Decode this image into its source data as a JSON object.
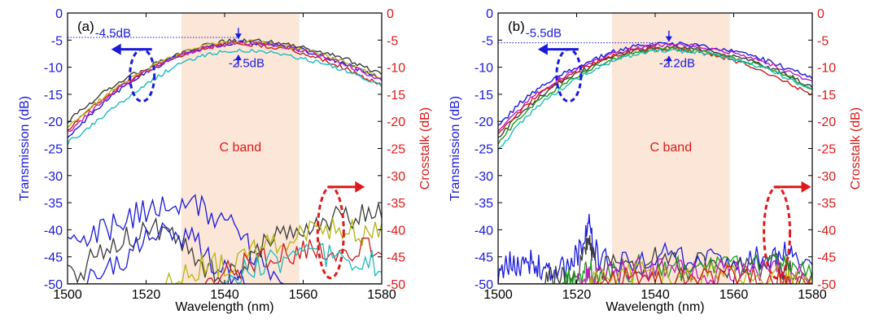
{
  "figure": {
    "colors": {
      "left_axis": "#1a1adc",
      "right_axis": "#e01a1a",
      "band_fill": "#fbe6d8",
      "frame": "#000000"
    }
  },
  "chart_data": [
    {
      "type": "line",
      "panel_label": "(a)",
      "xlabel": "Wavelength (nm)",
      "ylabel_left": "Transmission (dB)",
      "ylabel_right": "Crosstalk (dB)",
      "xlim": [
        1500,
        1580
      ],
      "ylim_left": [
        -50,
        0
      ],
      "ylim_right": [
        -50,
        0
      ],
      "xticks": [
        "1500",
        "1520",
        "1540",
        "1560",
        "1580"
      ],
      "yticks_left": [
        "0",
        "-5",
        "-10",
        "-15",
        "-20",
        "-25",
        "-30",
        "-35",
        "-40",
        "-45",
        "-50"
      ],
      "yticks_right": [
        "0",
        "-5",
        "-10",
        "-15",
        "-20",
        "-25",
        "-30",
        "-35",
        "-40",
        "-45",
        "-50"
      ],
      "band": {
        "label": "C band",
        "x_range": [
          1529,
          1559
        ]
      },
      "reference_line_y": -4.5,
      "annotations": [
        {
          "text": "-4.5dB",
          "x": 1507,
          "y": -4.4
        },
        {
          "text": "-2.5dB",
          "x": 1541,
          "y": -10.0
        }
      ],
      "bracket_top_y": -5.0,
      "bracket_bottom_y": -7.5,
      "bracket_x": 1543.5,
      "left_marker": {
        "x": 1519,
        "y": -11.5
      },
      "right_marker": {
        "x": 1567,
        "y": -40.5
      },
      "transmission": {
        "x": [
          1500,
          1505,
          1510,
          1515,
          1520,
          1525,
          1530,
          1535,
          1540,
          1545,
          1550,
          1555,
          1560,
          1565,
          1570,
          1575,
          1580
        ],
        "series": [
          {
            "color": "#3b3b3b",
            "values": [
              -20.0,
              -17.0,
              -14.3,
              -12.0,
              -10.2,
              -8.6,
              -7.2,
              -6.0,
              -5.2,
              -5.0,
              -5.2,
              -5.6,
              -6.3,
              -7.2,
              -8.3,
              -9.7,
              -11.3
            ]
          },
          {
            "color": "#1a1adc",
            "values": [
              -23.0,
              -19.5,
              -16.0,
              -13.3,
              -11.0,
              -9.0,
              -7.5,
              -6.4,
              -5.7,
              -5.4,
              -5.6,
              -6.1,
              -6.9,
              -7.9,
              -9.2,
              -10.7,
              -12.3
            ]
          },
          {
            "color": "#d01a1a",
            "values": [
              -21.5,
              -18.3,
              -15.3,
              -12.9,
              -10.7,
              -8.9,
              -7.5,
              -6.5,
              -5.8,
              -5.7,
              -6.0,
              -6.5,
              -7.4,
              -8.6,
              -10.0,
              -11.7,
              -13.5
            ]
          },
          {
            "color": "#b5b514",
            "values": [
              -21.0,
              -18.0,
              -15.0,
              -12.6,
              -10.4,
              -8.6,
              -7.2,
              -6.1,
              -5.5,
              -5.3,
              -5.5,
              -6.0,
              -6.8,
              -7.8,
              -9.0,
              -10.5,
              -12.0
            ]
          },
          {
            "color": "#1fbcbc",
            "values": [
              -24.0,
              -21.5,
              -18.5,
              -15.8,
              -13.0,
              -10.8,
              -9.0,
              -7.8,
              -7.1,
              -6.9,
              -7.1,
              -7.6,
              -8.4,
              -9.3,
              -10.4,
              -11.8,
              -13.4
            ]
          },
          {
            "color": "#c01cc0",
            "values": [
              -22.0,
              -18.8,
              -15.6,
              -13.0,
              -10.8,
              -9.0,
              -7.5,
              -6.4,
              -5.7,
              -5.5,
              -5.7,
              -6.2,
              -7.0,
              -8.0,
              -9.3,
              -10.8,
              -12.4
            ]
          }
        ]
      },
      "crosstalk": {
        "x": [
          1500,
          1505,
          1510,
          1515,
          1520,
          1525,
          1530,
          1535,
          1540,
          1545,
          1550,
          1555,
          1560,
          1565,
          1570,
          1575,
          1580
        ],
        "series": [
          {
            "color": "#1a1adc",
            "values": [
              -42.5,
              -41.5,
              -40.0,
              -38.0,
              -36.5,
              -35.5,
              -35.5,
              -36.5,
              -38.5,
              -42.0,
              -47.0,
              -50,
              -50,
              -50,
              -50,
              -50,
              -50
            ]
          },
          {
            "color": "#3b3b3b",
            "values": [
              -48.5,
              -46.5,
              -44.0,
              -41.5,
              -40.0,
              -40.0,
              -42.5,
              -46.5,
              -50,
              -46.0,
              -43.0,
              -40.0,
              -39.0,
              -38.0,
              -37.5,
              -37.0,
              -37.0
            ]
          },
          {
            "color": "#1a1adc",
            "values": [
              -50,
              -50,
              -48.0,
              -45.0,
              -42.0,
              -40.0,
              -41.0,
              -44.0,
              -48.0,
              -50,
              -50,
              -50,
              -50,
              -50,
              -50,
              -50,
              -50
            ]
          },
          {
            "color": "#b5b514",
            "values": [
              -50,
              -50,
              -50,
              -50,
              -50,
              -50,
              -47.5,
              -46.5,
              -46.5,
              -45.0,
              -43.0,
              -41.5,
              -40.5,
              -40.0,
              -40.0,
              -40.5,
              -41.0
            ]
          },
          {
            "color": "#d01a1a",
            "values": [
              -50,
              -50,
              -50,
              -50,
              -50,
              -50,
              -50,
              -50,
              -48.5,
              -46.5,
              -45.5,
              -44.5,
              -44.0,
              -43.5,
              -43.5,
              -43.5,
              -43.5
            ]
          },
          {
            "color": "#1fbcbc",
            "values": [
              -50,
              -50,
              -50,
              -50,
              -50,
              -50,
              -50,
              -50,
              -50,
              -47.5,
              -46.5,
              -45.5,
              -45.0,
              -45.0,
              -45.5,
              -46.0,
              -46.0
            ]
          }
        ]
      }
    },
    {
      "type": "line",
      "panel_label": "(b)",
      "xlabel": "Wavelength (nm)",
      "ylabel_left": "Transmission (dB)",
      "ylabel_right": "Crosstalk (dB)",
      "xlim": [
        1500,
        1580
      ],
      "ylim_left": [
        -50,
        0
      ],
      "ylim_right": [
        -50,
        0
      ],
      "xticks": [
        "1500",
        "1520",
        "1540",
        "1560",
        "1580"
      ],
      "yticks_left": [
        "0",
        "-5",
        "-10",
        "-15",
        "-20",
        "-25",
        "-30",
        "-35",
        "-40",
        "-45",
        "-50"
      ],
      "yticks_right": [
        "0",
        "-5",
        "-10",
        "-15",
        "-20",
        "-25",
        "-30",
        "-35",
        "-40",
        "-45",
        "-50"
      ],
      "band": {
        "label": "C band",
        "x_range": [
          1529,
          1559
        ]
      },
      "reference_line_y": -5.5,
      "annotations": [
        {
          "text": "-5.5dB",
          "x": 1507,
          "y": -4.4
        },
        {
          "text": "-2.2dB",
          "x": 1541,
          "y": -10.0
        }
      ],
      "bracket_top_y": -5.5,
      "bracket_bottom_y": -7.7,
      "bracket_x": 1543.5,
      "left_marker": {
        "x": 1518,
        "y": -11.5
      },
      "right_marker": {
        "x": 1571,
        "y": -40.5
      },
      "transmission": {
        "x": [
          1500,
          1505,
          1510,
          1515,
          1520,
          1525,
          1530,
          1535,
          1540,
          1545,
          1550,
          1555,
          1560,
          1565,
          1570,
          1575,
          1580
        ],
        "series": [
          {
            "color": "#1a1adc",
            "values": [
              -21.0,
              -17.0,
              -14.0,
              -11.8,
              -10.0,
              -8.4,
              -7.0,
              -6.0,
              -5.6,
              -5.6,
              -5.9,
              -6.4,
              -7.1,
              -8.0,
              -9.2,
              -10.6,
              -12.0
            ]
          },
          {
            "color": "#c01cc0",
            "values": [
              -22.0,
              -18.0,
              -14.8,
              -12.4,
              -10.5,
              -8.8,
              -7.4,
              -6.4,
              -5.9,
              -5.8,
              -6.1,
              -6.6,
              -7.4,
              -8.4,
              -9.7,
              -11.2,
              -12.8
            ]
          },
          {
            "color": "#3b3b3b",
            "values": [
              -23.0,
              -19.0,
              -15.8,
              -13.2,
              -11.2,
              -9.4,
              -7.9,
              -6.9,
              -6.4,
              -6.3,
              -6.6,
              -7.1,
              -7.9,
              -9.0,
              -10.3,
              -11.9,
              -13.6
            ]
          },
          {
            "color": "#d01a1a",
            "values": [
              -22.5,
              -18.5,
              -15.2,
              -12.8,
              -10.8,
              -9.2,
              -7.8,
              -6.9,
              -6.5,
              -6.6,
              -7.0,
              -7.7,
              -8.7,
              -10.0,
              -11.5,
              -13.3,
              -15.2
            ]
          },
          {
            "color": "#1a9a1a",
            "values": [
              -24.0,
              -19.8,
              -16.5,
              -13.8,
              -11.7,
              -9.8,
              -8.3,
              -7.3,
              -6.8,
              -6.7,
              -7.0,
              -7.5,
              -8.3,
              -9.4,
              -10.7,
              -12.2,
              -13.9
            ]
          },
          {
            "color": "#1fbcbc",
            "values": [
              -25.5,
              -20.8,
              -17.3,
              -14.5,
              -12.2,
              -10.2,
              -8.6,
              -7.6,
              -7.0,
              -6.9,
              -7.2,
              -7.7,
              -8.5,
              -9.6,
              -10.9,
              -12.4,
              -14.1
            ]
          }
        ]
      },
      "crosstalk": {
        "x": [
          1500,
          1502,
          1504,
          1506,
          1508,
          1510,
          1512,
          1514,
          1516,
          1518,
          1520,
          1522,
          1523,
          1524,
          1526,
          1530,
          1535,
          1540,
          1545,
          1550,
          1555,
          1560,
          1565,
          1570,
          1573,
          1575,
          1580
        ],
        "series": [
          {
            "color": "#1a1adc",
            "values": [
              -50,
              -46.5,
              -46.0,
              -46.5,
              -46.0,
              -46.5,
              -47.0,
              -47.5,
              -47.0,
              -46.5,
              -45.0,
              -42.0,
              -36.5,
              -42.0,
              -46.0,
              -46.0,
              -45.0,
              -44.5,
              -45.0,
              -45.5,
              -46.0,
              -45.5,
              -45.5,
              -45.0,
              -44.0,
              -45.5,
              -47.5
            ]
          },
          {
            "color": "#3b3b3b",
            "values": [
              -50,
              -50,
              -50,
              -50,
              -50,
              -50,
              -50,
              -49.0,
              -48.5,
              -48.0,
              -47.0,
              -45.0,
              -40.5,
              -45.0,
              -47.0,
              -47.0,
              -46.5,
              -45.5,
              -46.0,
              -46.5,
              -46.5,
              -46.5,
              -47.0,
              -46.5,
              -47.0,
              -47.5,
              -48.5
            ]
          },
          {
            "color": "#1a9a1a",
            "values": [
              -50,
              -50,
              -50,
              -50,
              -50,
              -50,
              -50,
              -50,
              -50,
              -49.5,
              -49.0,
              -48.0,
              -47.5,
              -48.0,
              -48.0,
              -47.5,
              -47.0,
              -47.0,
              -47.0,
              -47.5,
              -47.0,
              -47.0,
              -46.5,
              -46.5,
              -46.0,
              -46.5,
              -47.0
            ]
          },
          {
            "color": "#c01cc0",
            "values": [
              -50,
              -50,
              -50,
              -50,
              -50,
              -50,
              -50,
              -50,
              -50,
              -50,
              -50,
              -49.0,
              -48.5,
              -49.0,
              -48.5,
              -48.0,
              -47.5,
              -47.5,
              -48.0,
              -48.0,
              -48.0,
              -47.5,
              -48.0,
              -48.0,
              -48.0,
              -48.5,
              -49.0
            ]
          },
          {
            "color": "#b5b514",
            "values": [
              -50,
              -50,
              -50,
              -50,
              -50,
              -50,
              -50,
              -50,
              -50,
              -50,
              -50,
              -50,
              -50,
              -49.5,
              -49.0,
              -48.5,
              -48.5,
              -48.5,
              -48.5,
              -49.0,
              -48.5,
              -48.5,
              -49.0,
              -49.0,
              -49.0,
              -49.5,
              -49.5
            ]
          },
          {
            "color": "#d01a1a",
            "values": [
              -50,
              -50,
              -50,
              -50,
              -50,
              -50,
              -50,
              -50,
              -50,
              -50,
              -50,
              -50,
              -50,
              -50,
              -49.5,
              -49.0,
              -49.0,
              -49.0,
              -49.0,
              -49.5,
              -49.5,
              -49.0,
              -49.5,
              -49.5,
              -49.5,
              -49.5,
              -49.5
            ]
          }
        ]
      }
    }
  ]
}
